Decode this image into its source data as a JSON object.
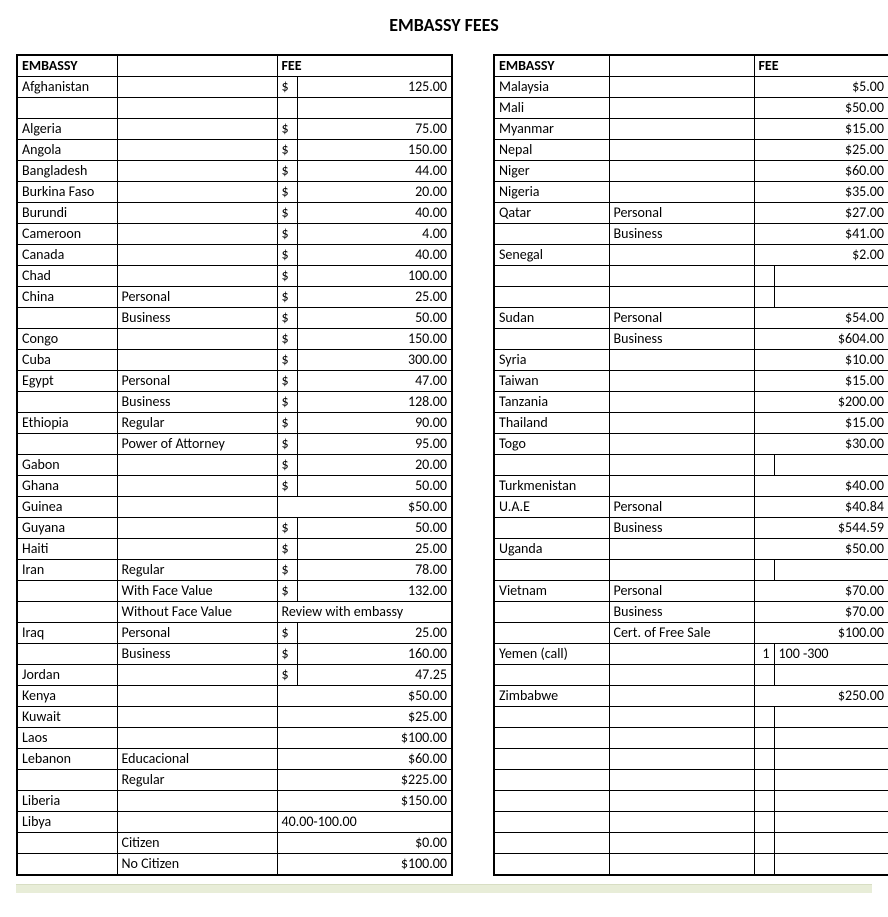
{
  "title": "EMBASSY FEES",
  "headers": {
    "embassy": "EMBASSY",
    "fee": "FEE"
  },
  "left_rows": [
    {
      "embassy": "Afghanistan",
      "type": "",
      "sym": "$",
      "amount": "125.00"
    },
    {
      "embassy": "",
      "type": "",
      "sym": "",
      "amount": ""
    },
    {
      "embassy": "Algeria",
      "type": "",
      "sym": "$",
      "amount": "75.00"
    },
    {
      "embassy": "Angola",
      "type": "",
      "sym": "$",
      "amount": "150.00"
    },
    {
      "embassy": "Bangladesh",
      "type": "",
      "sym": "$",
      "amount": "44.00"
    },
    {
      "embassy": "Burkina Faso",
      "type": "",
      "sym": "$",
      "amount": "20.00"
    },
    {
      "embassy": "Burundi",
      "type": "",
      "sym": "$",
      "amount": "40.00"
    },
    {
      "embassy": "Cameroon",
      "type": "",
      "sym": "$",
      "amount": "4.00"
    },
    {
      "embassy": "Canada",
      "type": "",
      "sym": "$",
      "amount": "40.00"
    },
    {
      "embassy": "Chad",
      "type": "",
      "sym": "$",
      "amount": "100.00"
    },
    {
      "embassy": "China",
      "type": "Personal",
      "sym": "$",
      "amount": "25.00"
    },
    {
      "embassy": "",
      "type": "Business",
      "sym": "$",
      "amount": "50.00"
    },
    {
      "embassy": "Congo",
      "type": "",
      "sym": "$",
      "amount": "150.00"
    },
    {
      "embassy": "Cuba",
      "type": "",
      "sym": "$",
      "amount": "300.00"
    },
    {
      "embassy": "Egypt",
      "type": "Personal",
      "sym": "$",
      "amount": "47.00"
    },
    {
      "embassy": "",
      "type": "Business",
      "sym": "$",
      "amount": "128.00"
    },
    {
      "embassy": "Ethiopia",
      "type": "Regular",
      "sym": "$",
      "amount": "90.00"
    },
    {
      "embassy": "",
      "type": "Power of Attorney",
      "sym": "$",
      "amount": "95.00"
    },
    {
      "embassy": "Gabon",
      "type": "",
      "sym": "$",
      "amount": "20.00"
    },
    {
      "embassy": "Ghana",
      "type": "",
      "sym": "$",
      "amount": "50.00"
    },
    {
      "embassy": "Guinea",
      "type": "",
      "fee_text_right": "$50.00"
    },
    {
      "embassy": "Guyana",
      "type": "",
      "sym": "$",
      "amount": "50.00"
    },
    {
      "embassy": "Haiti",
      "type": "",
      "sym": "$",
      "amount": "25.00"
    },
    {
      "embassy": "Iran",
      "type": "Regular",
      "sym": "$",
      "amount": "78.00"
    },
    {
      "embassy": "",
      "type": "With Face Value",
      "sym": "$",
      "amount": "132.00"
    },
    {
      "embassy": "",
      "type": "Without Face Value",
      "fee_text_left": "Review with embassy"
    },
    {
      "embassy": "Iraq",
      "type": "Personal",
      "sym": "$",
      "amount": "25.00"
    },
    {
      "embassy": "",
      "type": "Business",
      "sym": "$",
      "amount": "160.00"
    },
    {
      "embassy": "Jordan",
      "type": "",
      "sym": "$",
      "amount": "47.25"
    },
    {
      "embassy": "Kenya",
      "type": "",
      "fee_text_right": "$50.00"
    },
    {
      "embassy": "Kuwait",
      "type": "",
      "fee_text_right": "$25.00"
    },
    {
      "embassy": "Laos",
      "type": "",
      "fee_text_right": "$100.00"
    },
    {
      "embassy": "Lebanon",
      "type": "Educacional",
      "fee_text_right": "$60.00"
    },
    {
      "embassy": "",
      "type": "Regular",
      "fee_text_right": "$225.00"
    },
    {
      "embassy": "Liberia",
      "type": "",
      "fee_text_right": "$150.00"
    },
    {
      "embassy": "Libya",
      "type": "",
      "fee_text_left": "40.00-100.00"
    },
    {
      "embassy": "",
      "type": "Citizen",
      "fee_text_right": "$0.00"
    },
    {
      "embassy": "",
      "type": "No Citizen",
      "fee_text_right": "$100.00"
    }
  ],
  "right_rows": [
    {
      "embassy": "Malaysia",
      "type": "",
      "fee_text_right": "$5.00"
    },
    {
      "embassy": "Mali",
      "type": "",
      "fee_text_right": "$50.00"
    },
    {
      "embassy": "Myanmar",
      "type": "",
      "fee_text_right": "$15.00"
    },
    {
      "embassy": "Nepal",
      "type": "",
      "fee_text_right": "$25.00"
    },
    {
      "embassy": "Niger",
      "type": "",
      "fee_text_right": "$60.00"
    },
    {
      "embassy": "Nigeria",
      "type": "",
      "fee_text_right": "$35.00"
    },
    {
      "embassy": "Qatar",
      "type": "Personal",
      "fee_text_right": "$27.00"
    },
    {
      "embassy": "",
      "type": "Business",
      "fee_text_right": "$41.00"
    },
    {
      "embassy": "Senegal",
      "type": "",
      "fee_text_right": "$2.00"
    },
    {
      "embassy": "",
      "type": "",
      "sym": "",
      "amount": ""
    },
    {
      "embassy": "",
      "type": "",
      "sym": "",
      "amount": ""
    },
    {
      "embassy": "Sudan",
      "type": "Personal",
      "fee_text_right": "$54.00"
    },
    {
      "embassy": "",
      "type": "Business",
      "fee_text_right": "$604.00"
    },
    {
      "embassy": "Syria",
      "type": "",
      "fee_text_right": "$10.00"
    },
    {
      "embassy": "Taiwan",
      "type": "",
      "fee_text_right": "$15.00"
    },
    {
      "embassy": "Tanzania",
      "type": "",
      "fee_text_right": "$200.00"
    },
    {
      "embassy": "Thailand",
      "type": "",
      "fee_text_right": "$15.00"
    },
    {
      "embassy": "Togo",
      "type": "",
      "fee_text_right": "$30.00"
    },
    {
      "embassy": "",
      "type": "",
      "sym": "",
      "amount": ""
    },
    {
      "embassy": "Turkmenistan",
      "type": "",
      "fee_text_right": "$40.00"
    },
    {
      "embassy": "U.A.E",
      "type": "Personal",
      "fee_text_right": "$40.84"
    },
    {
      "embassy": "",
      "type": "Business",
      "fee_text_right": "$544.59"
    },
    {
      "embassy": "Uganda",
      "type": "",
      "fee_text_right": "$50.00"
    },
    {
      "embassy": "",
      "type": "",
      "sym": "",
      "amount": ""
    },
    {
      "embassy": "Vietnam",
      "type": "Personal",
      "fee_text_right": "$70.00"
    },
    {
      "embassy": "",
      "type": "Business",
      "fee_text_right": "$70.00"
    },
    {
      "embassy": "",
      "type": "Cert. of Free Sale",
      "fee_text_right": "$100.00"
    },
    {
      "embassy": "Yemen (call)",
      "type": "",
      "sym_right": "1",
      "fee_text_left": "100 -300"
    },
    {
      "embassy": "",
      "type": "",
      "sym": "",
      "amount": ""
    },
    {
      "embassy": "Zimbabwe",
      "type": "",
      "fee_text_right": "$250.00"
    },
    {
      "embassy": "",
      "type": "",
      "sym": "",
      "amount": ""
    },
    {
      "embassy": "",
      "type": "",
      "sym": "",
      "amount": ""
    },
    {
      "embassy": "",
      "type": "",
      "sym": "",
      "amount": ""
    },
    {
      "embassy": "",
      "type": "",
      "sym": "",
      "amount": ""
    },
    {
      "embassy": "",
      "type": "",
      "sym": "",
      "amount": ""
    },
    {
      "embassy": "",
      "type": "",
      "sym": "",
      "amount": ""
    },
    {
      "embassy": "",
      "type": "",
      "sym": "",
      "amount": ""
    },
    {
      "embassy": "",
      "type": "",
      "sym": "",
      "amount": ""
    }
  ]
}
